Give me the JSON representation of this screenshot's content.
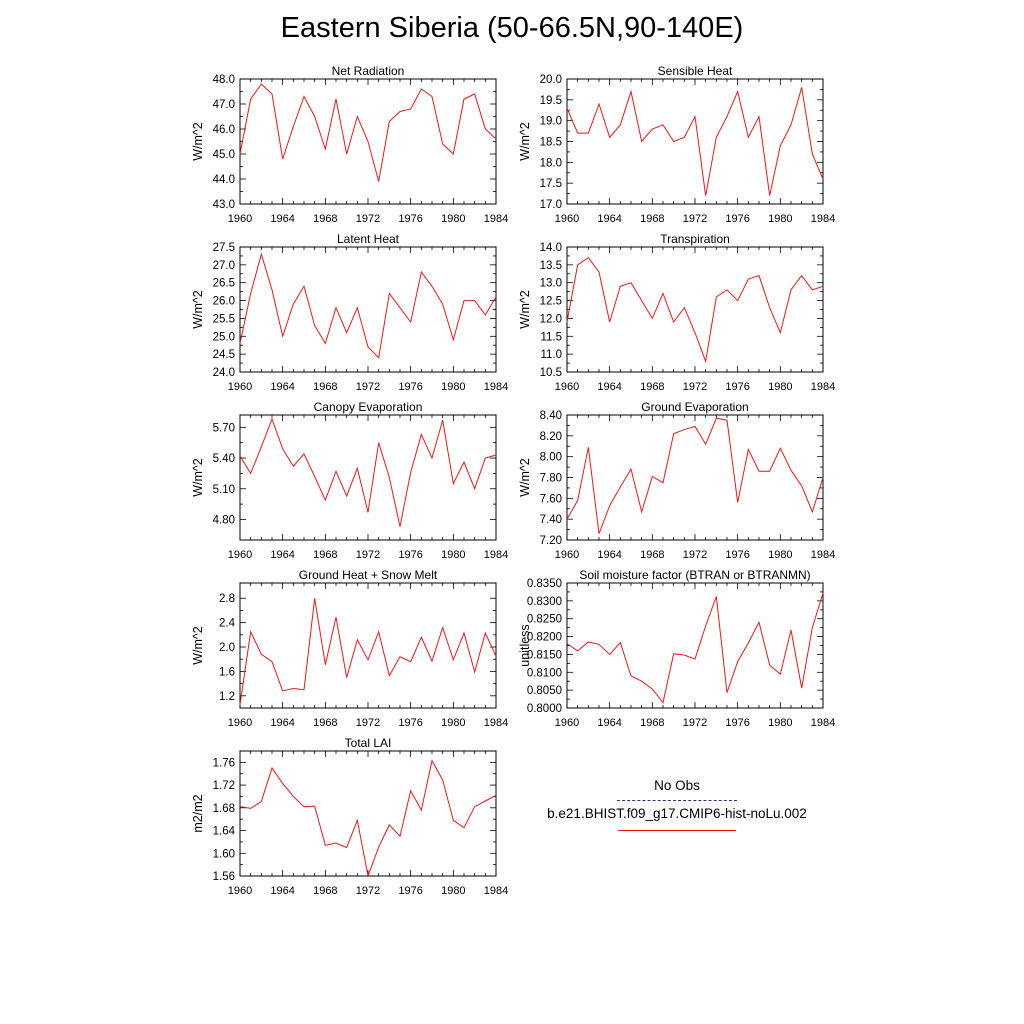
{
  "title": "Eastern Siberia (50-66.5N,90-140E)",
  "colors": {
    "model": "#e41a1c",
    "obs": "#2c3180",
    "axis": "#000000"
  },
  "legend": {
    "obs_label": "No Obs",
    "model_label": "b.e21.BHIST.f09_g17.CMIP6-hist-noLu.002"
  },
  "chart_data": [
    {
      "type": "line",
      "title": "Net Radiation",
      "ylabel": "W/m^2",
      "xlim": [
        1960,
        1984
      ],
      "ylim": [
        43.0,
        48.0
      ],
      "xticks": [
        "1960",
        "1964",
        "1968",
        "1972",
        "1976",
        "1980",
        "1984"
      ],
      "yticks": [
        43.0,
        44.0,
        45.0,
        46.0,
        47.0,
        48.0
      ],
      "ytick_labels": [
        "43.0",
        "44.0",
        "45.0",
        "46.0",
        "47.0",
        "48.0"
      ],
      "x": [
        1960,
        1961,
        1962,
        1963,
        1964,
        1965,
        1966,
        1967,
        1968,
        1969,
        1970,
        1971,
        1972,
        1973,
        1974,
        1975,
        1976,
        1977,
        1978,
        1979,
        1980,
        1981,
        1982,
        1983,
        1984
      ],
      "series": [
        {
          "values": [
            45.0,
            47.2,
            47.8,
            47.4,
            44.8,
            46.1,
            47.3,
            46.5,
            45.2,
            47.2,
            45.0,
            46.5,
            45.5,
            43.9,
            46.3,
            46.7,
            46.8,
            47.6,
            47.3,
            45.4,
            45.0,
            47.2,
            47.4,
            46.0,
            45.6
          ]
        }
      ]
    },
    {
      "type": "line",
      "title": "Sensible Heat",
      "ylabel": "W/m^2",
      "xlim": [
        1960,
        1984
      ],
      "ylim": [
        17.0,
        20.0
      ],
      "xticks": [
        "1960",
        "1964",
        "1968",
        "1972",
        "1976",
        "1980",
        "1984"
      ],
      "yticks": [
        17.0,
        17.5,
        18.0,
        18.5,
        19.0,
        19.5,
        20.0
      ],
      "ytick_labels": [
        "17.0",
        "17.5",
        "18.0",
        "18.5",
        "19.0",
        "19.5",
        "20.0"
      ],
      "x": [
        1960,
        1961,
        1962,
        1963,
        1964,
        1965,
        1966,
        1967,
        1968,
        1969,
        1970,
        1971,
        1972,
        1973,
        1974,
        1975,
        1976,
        1977,
        1978,
        1979,
        1980,
        1981,
        1982,
        1983,
        1984
      ],
      "series": [
        {
          "values": [
            19.3,
            18.7,
            18.7,
            19.4,
            18.6,
            18.9,
            19.7,
            18.5,
            18.8,
            18.9,
            18.5,
            18.6,
            19.1,
            17.2,
            18.6,
            19.1,
            19.7,
            18.6,
            19.1,
            17.2,
            18.4,
            18.9,
            19.8,
            18.2,
            17.6
          ]
        }
      ]
    },
    {
      "type": "line",
      "title": "Latent Heat",
      "ylabel": "W/m^2",
      "xlim": [
        1960,
        1984
      ],
      "ylim": [
        24.0,
        27.5
      ],
      "xticks": [
        "1960",
        "1964",
        "1968",
        "1972",
        "1976",
        "1980",
        "1984"
      ],
      "yticks": [
        24.0,
        24.5,
        25.0,
        25.5,
        26.0,
        26.5,
        27.0,
        27.5
      ],
      "ytick_labels": [
        "24.0",
        "24.5",
        "25.0",
        "25.5",
        "26.0",
        "26.5",
        "27.0",
        "27.5"
      ],
      "x": [
        1960,
        1961,
        1962,
        1963,
        1964,
        1965,
        1966,
        1967,
        1968,
        1969,
        1970,
        1971,
        1972,
        1973,
        1974,
        1975,
        1976,
        1977,
        1978,
        1979,
        1980,
        1981,
        1982,
        1983,
        1984
      ],
      "series": [
        {
          "values": [
            24.8,
            26.2,
            27.3,
            26.3,
            25.0,
            25.9,
            26.4,
            25.3,
            24.8,
            25.8,
            25.1,
            25.8,
            24.7,
            24.4,
            26.2,
            25.8,
            25.4,
            26.8,
            26.4,
            25.9,
            24.9,
            26.0,
            26.0,
            25.6,
            26.1
          ]
        }
      ]
    },
    {
      "type": "line",
      "title": "Transpiration",
      "ylabel": "W/m^2",
      "xlim": [
        1960,
        1984
      ],
      "ylim": [
        10.5,
        14.0
      ],
      "xticks": [
        "1960",
        "1964",
        "1968",
        "1972",
        "1976",
        "1980",
        "1984"
      ],
      "yticks": [
        10.5,
        11.0,
        11.5,
        12.0,
        12.5,
        13.0,
        13.5,
        14.0
      ],
      "ytick_labels": [
        "10.5",
        "11.0",
        "11.5",
        "12.0",
        "12.5",
        "13.0",
        "13.5",
        "14.0"
      ],
      "x": [
        1960,
        1961,
        1962,
        1963,
        1964,
        1965,
        1966,
        1967,
        1968,
        1969,
        1970,
        1971,
        1972,
        1973,
        1974,
        1975,
        1976,
        1977,
        1978,
        1979,
        1980,
        1981,
        1982,
        1983,
        1984
      ],
      "series": [
        {
          "values": [
            11.9,
            13.5,
            13.7,
            13.3,
            11.9,
            12.9,
            13.0,
            12.5,
            12.0,
            12.7,
            11.9,
            12.3,
            11.6,
            10.8,
            12.6,
            12.8,
            12.5,
            13.1,
            13.2,
            12.3,
            11.6,
            12.8,
            13.2,
            12.8,
            12.9
          ]
        }
      ]
    },
    {
      "type": "line",
      "title": "Canopy Evaporation",
      "ylabel": "W/m^2",
      "xlim": [
        1960,
        1984
      ],
      "ylim": [
        4.6,
        5.82
      ],
      "xticks": [
        "1960",
        "1964",
        "1968",
        "1972",
        "1976",
        "1980",
        "1984"
      ],
      "yticks": [
        4.8,
        5.1,
        5.4,
        5.7
      ],
      "ytick_labels": [
        "4.80",
        "5.10",
        "5.40",
        "5.70"
      ],
      "x": [
        1960,
        1961,
        1962,
        1963,
        1964,
        1965,
        1966,
        1967,
        1968,
        1969,
        1970,
        1971,
        1972,
        1973,
        1974,
        1975,
        1976,
        1977,
        1978,
        1979,
        1980,
        1981,
        1982,
        1983,
        1984
      ],
      "series": [
        {
          "values": [
            5.42,
            5.25,
            5.51,
            5.78,
            5.49,
            5.32,
            5.44,
            5.22,
            4.99,
            5.27,
            5.03,
            5.3,
            4.87,
            5.55,
            5.21,
            4.73,
            5.26,
            5.63,
            5.4,
            5.77,
            5.15,
            5.36,
            5.1,
            5.4,
            5.43
          ]
        }
      ]
    },
    {
      "type": "line",
      "title": "Ground Evaporation",
      "ylabel": "W/m^2",
      "xlim": [
        1960,
        1984
      ],
      "ylim": [
        7.2,
        8.4
      ],
      "xticks": [
        "1960",
        "1964",
        "1968",
        "1972",
        "1976",
        "1980",
        "1984"
      ],
      "yticks": [
        7.2,
        7.4,
        7.6,
        7.8,
        8.0,
        8.2,
        8.4
      ],
      "ytick_labels": [
        "7.20",
        "7.40",
        "7.60",
        "7.80",
        "8.00",
        "8.20",
        "8.40"
      ],
      "x": [
        1960,
        1961,
        1962,
        1963,
        1964,
        1965,
        1966,
        1967,
        1968,
        1969,
        1970,
        1971,
        1972,
        1973,
        1974,
        1975,
        1976,
        1977,
        1978,
        1979,
        1980,
        1981,
        1982,
        1983,
        1984
      ],
      "series": [
        {
          "values": [
            7.4,
            7.58,
            8.09,
            7.26,
            7.53,
            7.71,
            7.88,
            7.47,
            7.81,
            7.75,
            8.22,
            8.26,
            8.29,
            8.12,
            8.37,
            8.35,
            7.56,
            8.07,
            7.86,
            7.86,
            8.08,
            7.87,
            7.72,
            7.47,
            7.8
          ]
        }
      ]
    },
    {
      "type": "line",
      "title": "Ground Heat + Snow Melt",
      "ylabel": "W/m^2",
      "xlim": [
        1960,
        1984
      ],
      "ylim": [
        1.0,
        3.05
      ],
      "xticks": [
        "1960",
        "1964",
        "1968",
        "1972",
        "1976",
        "1980",
        "1984"
      ],
      "yticks": [
        1.2,
        1.6,
        2.0,
        2.4,
        2.8
      ],
      "ytick_labels": [
        "1.2",
        "1.6",
        "2.0",
        "2.4",
        "2.8"
      ],
      "x": [
        1960,
        1961,
        1962,
        1963,
        1964,
        1965,
        1966,
        1967,
        1968,
        1969,
        1970,
        1971,
        1972,
        1973,
        1974,
        1975,
        1976,
        1977,
        1978,
        1979,
        1980,
        1981,
        1982,
        1983,
        1984
      ],
      "series": [
        {
          "values": [
            1.05,
            2.25,
            1.88,
            1.76,
            1.28,
            1.32,
            1.3,
            2.8,
            1.71,
            2.49,
            1.5,
            2.12,
            1.79,
            2.25,
            1.53,
            1.84,
            1.76,
            2.16,
            1.77,
            2.32,
            1.79,
            2.23,
            1.59,
            2.23,
            1.85
          ]
        }
      ]
    },
    {
      "type": "line",
      "title": "Soil moisture factor (BTRAN or BTRANMN)",
      "ylabel": "unitless",
      "xlim": [
        1960,
        1984
      ],
      "ylim": [
        0.8,
        0.835
      ],
      "xticks": [
        "1960",
        "1964",
        "1968",
        "1972",
        "1976",
        "1980",
        "1984"
      ],
      "yticks": [
        0.8,
        0.805,
        0.81,
        0.815,
        0.82,
        0.825,
        0.83,
        0.835
      ],
      "ytick_labels": [
        "0.8000",
        "0.8050",
        "0.8100",
        "0.8150",
        "0.8200",
        "0.8250",
        "0.8300",
        "0.8350"
      ],
      "x": [
        1960,
        1961,
        1962,
        1963,
        1964,
        1965,
        1966,
        1967,
        1968,
        1969,
        1970,
        1971,
        1972,
        1973,
        1974,
        1975,
        1976,
        1977,
        1978,
        1979,
        1980,
        1981,
        1982,
        1983,
        1984
      ],
      "series": [
        {
          "values": [
            0.818,
            0.816,
            0.8185,
            0.8178,
            0.815,
            0.8183,
            0.809,
            0.8075,
            0.8053,
            0.8015,
            0.8152,
            0.8148,
            0.8137,
            0.823,
            0.8312,
            0.8043,
            0.813,
            0.8182,
            0.824,
            0.812,
            0.8095,
            0.8218,
            0.8056,
            0.8225,
            0.8322
          ]
        }
      ]
    },
    {
      "type": "line",
      "title": "Total LAI",
      "ylabel": "m2/m2",
      "xlim": [
        1960,
        1984
      ],
      "ylim": [
        1.56,
        1.78
      ],
      "xticks": [
        "1960",
        "1964",
        "1968",
        "1972",
        "1976",
        "1980",
        "1984"
      ],
      "yticks": [
        1.56,
        1.6,
        1.64,
        1.68,
        1.72,
        1.76
      ],
      "ytick_labels": [
        "1.56",
        "1.60",
        "1.64",
        "1.68",
        "1.72",
        "1.76"
      ],
      "x": [
        1960,
        1961,
        1962,
        1963,
        1964,
        1965,
        1966,
        1967,
        1968,
        1969,
        1970,
        1971,
        1972,
        1973,
        1974,
        1975,
        1976,
        1977,
        1978,
        1979,
        1980,
        1981,
        1982,
        1983,
        1984
      ],
      "series": [
        {
          "values": [
            1.682,
            1.679,
            1.691,
            1.75,
            1.723,
            1.7,
            1.682,
            1.683,
            1.614,
            1.618,
            1.61,
            1.658,
            1.56,
            1.611,
            1.65,
            1.63,
            1.71,
            1.676,
            1.763,
            1.729,
            1.658,
            1.645,
            1.682,
            1.692,
            1.702
          ]
        }
      ]
    }
  ]
}
